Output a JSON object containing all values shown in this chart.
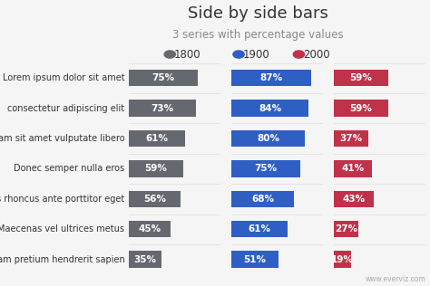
{
  "title": "Side by side bars",
  "subtitle": "3 series with percentage values",
  "categories": [
    "Lorem ipsum dolor sit amet",
    "consectetur adipiscing elit",
    "Nullam sit amet vulputate libero",
    "Donec semper nulla eros",
    "quis rhoncus ante porttitor eget",
    "Maecenas vel ultrices metus",
    "Nullam pretium hendrerit sapien"
  ],
  "series": [
    {
      "label": "1800",
      "color": "#666870",
      "values": [
        75,
        73,
        61,
        59,
        56,
        45,
        35
      ]
    },
    {
      "label": "1900",
      "color": "#2f5fc4",
      "values": [
        87,
        84,
        80,
        75,
        68,
        61,
        51
      ]
    },
    {
      "label": "2000",
      "color": "#c0324a",
      "values": [
        59,
        59,
        37,
        41,
        43,
        27,
        19
      ]
    }
  ],
  "background_color": "#f5f5f5",
  "text_color": "#333333",
  "watermark": "www.everviz.com",
  "bar_height": 0.55,
  "xlim": [
    0,
    100
  ],
  "title_fontsize": 13,
  "subtitle_fontsize": 8.5,
  "tick_fontsize": 7,
  "legend_fontsize": 8.5,
  "value_fontsize": 7.5,
  "legend_marker_size": 10
}
